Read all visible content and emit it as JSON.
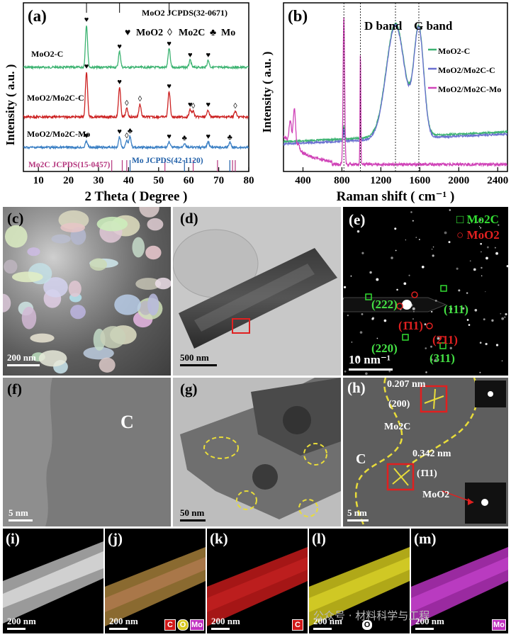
{
  "panel_labels": {
    "a": "(a)",
    "b": "(b)",
    "c": "(c)",
    "d": "(d)",
    "e": "(e)",
    "f": "(f)",
    "g": "(g)",
    "h": "(h)",
    "i": "(i)",
    "j": "(j)",
    "k": "(k)",
    "l": "(l)",
    "m": "(m)"
  },
  "chart_data": [
    {
      "type": "line",
      "panel": "(a)",
      "title": "",
      "xlabel": "2 Theta ( Degree )",
      "ylabel": "Intensity ( a.u. )",
      "xlim": [
        5,
        80
      ],
      "x_ticks": [
        10,
        20,
        30,
        40,
        50,
        60,
        70,
        80
      ],
      "ref_top": "MoO2 JCPDS(32-0671)",
      "ref_bottom_left": "Mo2C JCPDS(15-0457)",
      "ref_bottom_right": "Mo JCPDS(42-1120)",
      "legend_symbols": [
        {
          "symbol": "♥",
          "label": "MoO2"
        },
        {
          "symbol": "◊",
          "label": "Mo2C"
        },
        {
          "symbol": "♣",
          "label": "Mo"
        }
      ],
      "series": [
        {
          "name": "MoO2-C",
          "color": "#3cb371",
          "peaks": [
            [
              26.0,
              "♥"
            ],
            [
              37.0,
              "♥"
            ],
            [
              53.5,
              "♥"
            ],
            [
              60.5,
              "♥"
            ],
            [
              66.5,
              "♥"
            ]
          ]
        },
        {
          "name": "MoO2/Mo2C-C",
          "color": "#cc2222",
          "peaks": [
            [
              26.0,
              "♥"
            ],
            [
              37.0,
              "♥"
            ],
            [
              39.4,
              "◊"
            ],
            [
              43.8,
              "◊"
            ],
            [
              53.5,
              "♥"
            ],
            [
              60.5,
              "♥"
            ],
            [
              61.5,
              "◊"
            ],
            [
              66.5,
              "♥"
            ],
            [
              75.5,
              "◊"
            ]
          ]
        },
        {
          "name": "MoO2/Mo2C-Mo",
          "color": "#3a7fc4",
          "peaks": [
            [
              26.0,
              "♥"
            ],
            [
              37.0,
              "♥"
            ],
            [
              39.4,
              "◊"
            ],
            [
              40.5,
              "♣"
            ],
            [
              53.5,
              "♥"
            ],
            [
              58.6,
              "♣"
            ],
            [
              66.5,
              "♥"
            ],
            [
              73.7,
              "♣"
            ]
          ]
        }
      ]
    },
    {
      "type": "line",
      "panel": "(b)",
      "title": "",
      "xlabel": "Raman shift ( cm⁻¹ )",
      "ylabel": "Intensity ( a.u. )",
      "xlim": [
        200,
        2500
      ],
      "x_ticks": [
        400,
        800,
        1200,
        1600,
        2000,
        2400
      ],
      "band_labels": [
        "D band",
        "G band"
      ],
      "band_positions": [
        1350,
        1590
      ],
      "series": [
        {
          "name": "MoO2-C",
          "color": "#3cb371"
        },
        {
          "name": "MoO2/Mo2C-C",
          "color": "#6a6fd0"
        },
        {
          "name": "MoO2/Mo2C-Mo",
          "color": "#d044b8"
        }
      ]
    }
  ],
  "images": {
    "c": {
      "scale": "200 nm"
    },
    "d": {
      "scale": "500 nm"
    },
    "e": {
      "scale": "10 nm⁻¹",
      "legend": [
        {
          "symbol": "□",
          "label": "Mo2C",
          "color": "#33dd33"
        },
        {
          "symbol": "○",
          "label": "MoO2",
          "color": "#e02020"
        }
      ],
      "spots": [
        {
          "label": "(222)",
          "color": "#44e044"
        },
        {
          "label": "(111)",
          "color": "#44e044"
        },
        {
          "label": "(1̄11)",
          "color": "#e02020"
        },
        {
          "label": "(2̄11)",
          "color": "#e02020"
        },
        {
          "label": "(220)",
          "color": "#44e044"
        },
        {
          "label": "(311)",
          "color": "#44e044"
        }
      ]
    },
    "f": {
      "scale": "5 nm",
      "text": "C"
    },
    "g": {
      "scale": "50 nm"
    },
    "h": {
      "scale": "5 nm",
      "texts": [
        "0.207 nm",
        "(200)",
        "Mo2C",
        "C",
        "0.342 nm",
        "(1̄11)",
        "MoO2"
      ]
    },
    "i": {
      "scale": "200 nm"
    },
    "j": {
      "scale": "200 nm",
      "legend": [
        "C",
        "O",
        "Mo"
      ]
    },
    "k": {
      "scale": "200 nm",
      "legend": [
        "C"
      ]
    },
    "l": {
      "scale": "200 nm",
      "legend": [
        "O"
      ]
    },
    "m": {
      "scale": "200 nm",
      "legend": [
        "Mo"
      ]
    }
  },
  "watermark": "公众号 · 材料科学与工程",
  "colors": {
    "mo2c": "#33dd33",
    "moo2": "#e02020",
    "ref_mo2c": "#b5367e",
    "ref_mo": "#1f5fa8"
  }
}
